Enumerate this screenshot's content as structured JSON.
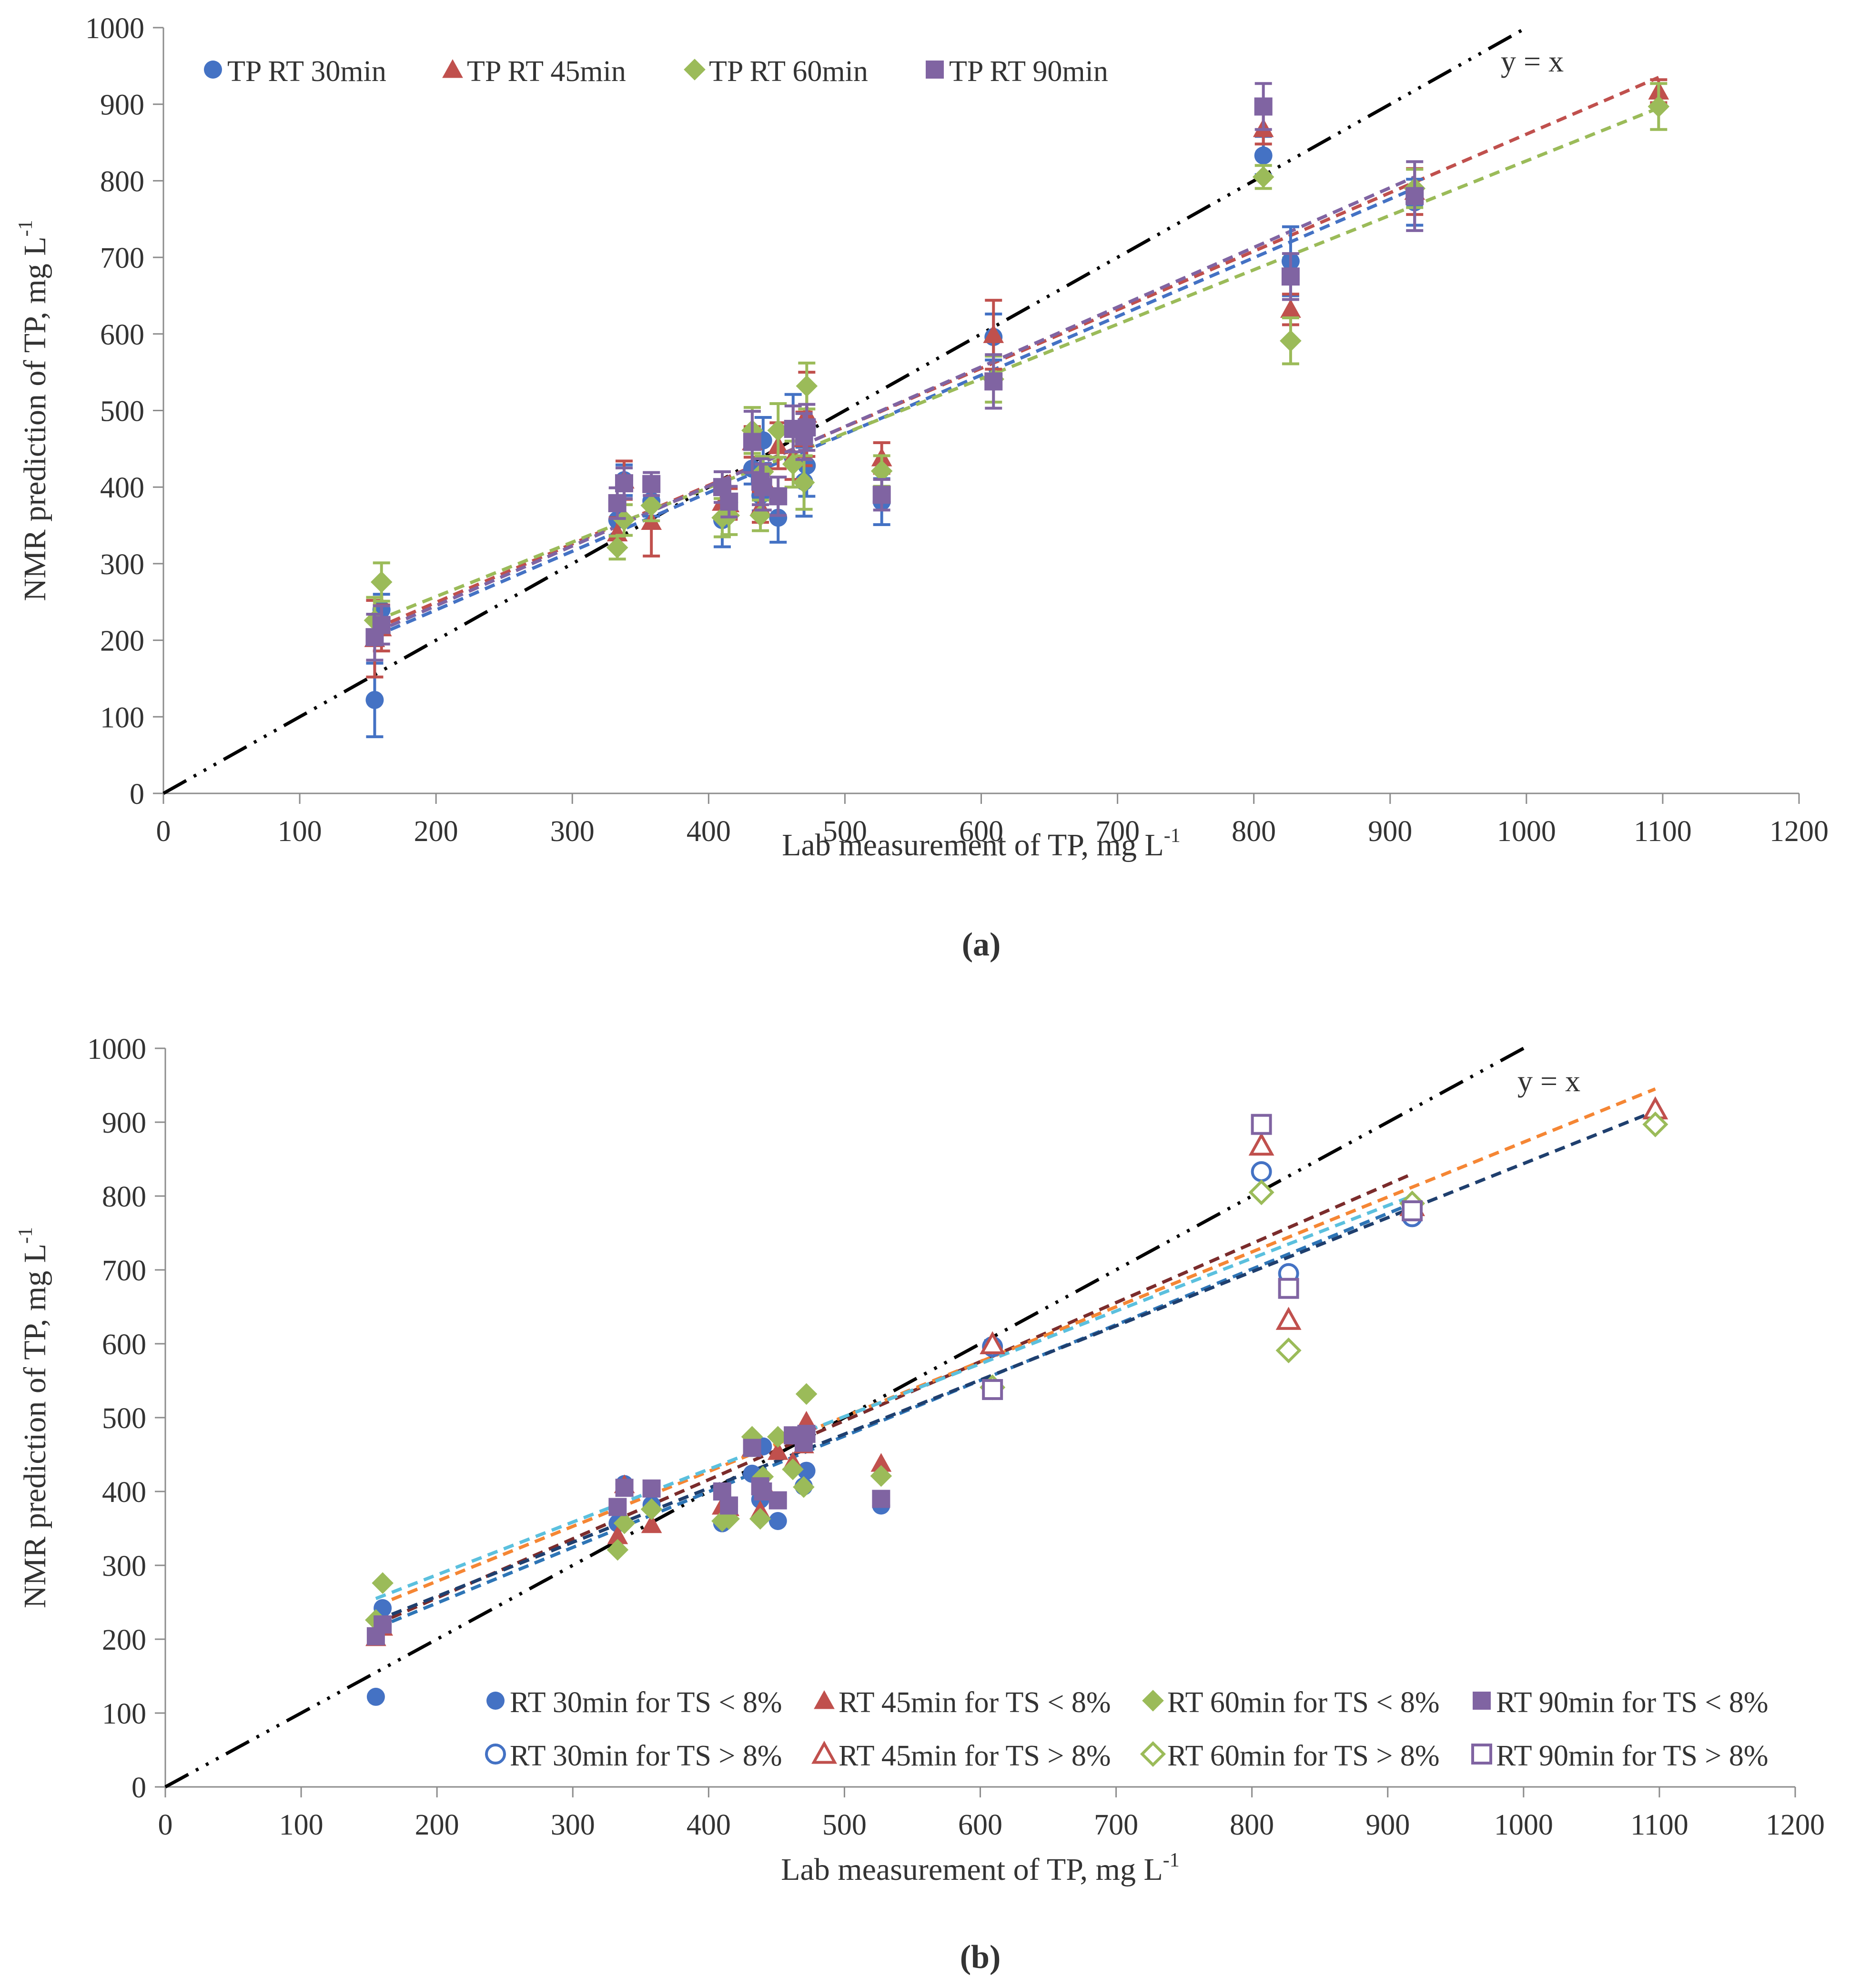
{
  "colors": {
    "rt30": "#4472c4",
    "rt45": "#c0504d",
    "rt60": "#9bbb59",
    "rt90": "#8064a2",
    "identity": "#000000",
    "fitB_lt8_30": "#2e75b6",
    "fitB_gt8_30": "#1f3f6e",
    "fitB_45": "#7b2c2c",
    "fitB_60": "#5bc0de",
    "fitB_90": "#f58634"
  },
  "chart_data": [
    {
      "type": "scatter",
      "caption": "(a)",
      "xlabel": "Lab measurement of TP, mg L",
      "ylabel": "NMR prediction of TP, mg L",
      "unit_superscript": "-1",
      "xlim": [
        0,
        1200
      ],
      "ylim": [
        0,
        1000
      ],
      "xticks": [
        "0",
        "100",
        "200",
        "300",
        "400",
        "500",
        "600",
        "700",
        "800",
        "900",
        "1000",
        "1100",
        "1200"
      ],
      "yticks": [
        "0",
        "100",
        "200",
        "300",
        "400",
        "500",
        "600",
        "700",
        "800",
        "900",
        "1000"
      ],
      "identity_label": "y = x",
      "series": [
        {
          "name": "TP RT 30min",
          "marker": "circle",
          "color_key": "rt30",
          "x": [
            155,
            160,
            333,
            338,
            358,
            410,
            415,
            432,
            438,
            440,
            451,
            462,
            470,
            472,
            527,
            609,
            807,
            827,
            918
          ],
          "y": [
            122,
            240,
            357,
            409,
            382,
            357,
            380,
            424,
            389,
            461,
            360,
            476,
            407,
            428,
            381,
            596,
            833,
            695,
            772
          ],
          "err": [
            48,
            20,
            20,
            20,
            20,
            35,
            20,
            20,
            20,
            30,
            32,
            45,
            45,
            40,
            30,
            30,
            25,
            45,
            30
          ],
          "fit": [
            [
              155,
              205
            ],
            [
              918,
              790
            ]
          ]
        },
        {
          "name": "TP RT 45min",
          "marker": "triangle",
          "color_key": "rt45",
          "x": [
            155,
            160,
            333,
            338,
            358,
            410,
            415,
            432,
            438,
            440,
            451,
            462,
            470,
            472,
            527,
            609,
            807,
            827,
            918,
            1097
          ],
          "y": [
            202,
            216,
            340,
            409,
            355,
            380,
            378,
            459,
            374,
            410,
            454,
            440,
            463,
            495,
            438,
            599,
            868,
            632,
            786,
            917
          ],
          "err": [
            50,
            30,
            20,
            25,
            45,
            20,
            20,
            20,
            20,
            20,
            30,
            30,
            35,
            55,
            20,
            45,
            20,
            20,
            30,
            15
          ],
          "fit": [
            [
              155,
              215
            ],
            [
              1097,
              935
            ]
          ]
        },
        {
          "name": "TP RT 60min",
          "marker": "diamond",
          "color_key": "rt60",
          "x": [
            155,
            160,
            333,
            338,
            358,
            410,
            415,
            432,
            438,
            440,
            451,
            462,
            470,
            472,
            527,
            609,
            807,
            827,
            918,
            1097
          ],
          "y": [
            226,
            276,
            321,
            357,
            376,
            360,
            363,
            474,
            363,
            420,
            474,
            430,
            406,
            532,
            421,
            541,
            805,
            591,
            790,
            897
          ],
          "err": [
            30,
            25,
            15,
            20,
            20,
            25,
            25,
            30,
            20,
            20,
            35,
            30,
            35,
            30,
            20,
            30,
            15,
            30,
            25,
            30
          ],
          "fit": [
            [
              155,
              225
            ],
            [
              1097,
              895
            ]
          ]
        },
        {
          "name": "TP RT 90min",
          "marker": "square",
          "color_key": "rt90",
          "x": [
            155,
            160,
            333,
            338,
            358,
            410,
            415,
            432,
            438,
            440,
            451,
            462,
            470,
            472,
            527,
            609,
            807,
            827,
            918
          ],
          "y": [
            204,
            220,
            379,
            405,
            404,
            400,
            381,
            459,
            407,
            400,
            388,
            476,
            466,
            478,
            390,
            538,
            897,
            675,
            780
          ],
          "err": [
            30,
            25,
            20,
            20,
            15,
            20,
            20,
            40,
            30,
            30,
            25,
            30,
            30,
            30,
            20,
            35,
            30,
            30,
            45
          ],
          "fit": [
            [
              155,
              210
            ],
            [
              918,
              805
            ]
          ]
        }
      ]
    },
    {
      "type": "scatter",
      "caption": "(b)",
      "xlabel": "Lab measurement of TP, mg L",
      "ylabel": "NMR prediction of TP, mg L",
      "unit_superscript": "-1",
      "xlim": [
        0,
        1200
      ],
      "ylim": [
        0,
        1000
      ],
      "xticks": [
        "0",
        "100",
        "200",
        "300",
        "400",
        "500",
        "600",
        "700",
        "800",
        "900",
        "1000",
        "1100",
        "1200"
      ],
      "yticks": [
        "0",
        "100",
        "200",
        "300",
        "400",
        "500",
        "600",
        "700",
        "800",
        "900",
        "1000"
      ],
      "identity_label": "y = x",
      "series": [
        {
          "name": "RT 30min for TS < 8%",
          "marker": "circle",
          "filled": true,
          "color_key": "rt30",
          "x": [
            155,
            160,
            333,
            338,
            358,
            410,
            415,
            432,
            438,
            440,
            451,
            462,
            470,
            472,
            527
          ],
          "y": [
            122,
            242,
            357,
            410,
            382,
            357,
            380,
            424,
            389,
            461,
            360,
            476,
            407,
            428,
            381
          ]
        },
        {
          "name": "RT 45min for TS < 8%",
          "marker": "triangle",
          "filled": true,
          "color_key": "rt45",
          "x": [
            155,
            160,
            333,
            338,
            358,
            410,
            415,
            432,
            438,
            440,
            451,
            462,
            470,
            472,
            527
          ],
          "y": [
            202,
            216,
            340,
            409,
            355,
            380,
            378,
            459,
            374,
            410,
            454,
            440,
            463,
            495,
            438
          ]
        },
        {
          "name": "RT 60min for TS < 8%",
          "marker": "diamond",
          "filled": true,
          "color_key": "rt60",
          "x": [
            155,
            160,
            333,
            338,
            358,
            410,
            415,
            432,
            438,
            440,
            451,
            462,
            470,
            472,
            527
          ],
          "y": [
            226,
            276,
            321,
            357,
            376,
            360,
            363,
            474,
            363,
            420,
            474,
            430,
            406,
            532,
            421
          ]
        },
        {
          "name": "RT 90min for TS < 8%",
          "marker": "square",
          "filled": true,
          "color_key": "rt90",
          "x": [
            155,
            160,
            333,
            338,
            358,
            410,
            415,
            432,
            438,
            440,
            451,
            462,
            470,
            472,
            527
          ],
          "y": [
            204,
            220,
            379,
            405,
            404,
            400,
            381,
            459,
            407,
            400,
            388,
            476,
            466,
            478,
            390
          ]
        },
        {
          "name": "RT 30min for TS > 8%",
          "marker": "circle",
          "filled": false,
          "color_key": "rt30",
          "x": [
            609,
            807,
            827,
            918
          ],
          "y": [
            596,
            833,
            695,
            772
          ]
        },
        {
          "name": "RT 45min for TS > 8%",
          "marker": "triangle",
          "filled": false,
          "color_key": "rt45",
          "x": [
            609,
            807,
            827,
            918,
            1097
          ],
          "y": [
            599,
            868,
            632,
            786,
            917
          ]
        },
        {
          "name": "RT 60min for TS > 8%",
          "marker": "diamond",
          "filled": false,
          "color_key": "rt60",
          "x": [
            609,
            807,
            827,
            918,
            1097
          ],
          "y": [
            541,
            805,
            591,
            790,
            897
          ]
        },
        {
          "name": "RT 90min for TS > 8%",
          "marker": "square",
          "filled": false,
          "color_key": "rt90",
          "x": [
            609,
            807,
            827,
            918
          ],
          "y": [
            538,
            897,
            675,
            780
          ]
        }
      ],
      "fits": [
        {
          "color_key": "fitB_lt8_30",
          "from": [
            155,
            215
          ],
          "to": [
            918,
            790
          ]
        },
        {
          "color_key": "fitB_45",
          "from": [
            155,
            220
          ],
          "to": [
            918,
            830
          ]
        },
        {
          "color_key": "fitB_90",
          "from": [
            155,
            245
          ],
          "to": [
            1097,
            945
          ]
        },
        {
          "color_key": "fitB_60",
          "from": [
            155,
            255
          ],
          "to": [
            918,
            800
          ]
        },
        {
          "color_key": "fitB_gt8_30",
          "from": [
            155,
            225
          ],
          "to": [
            1097,
            915
          ]
        }
      ]
    }
  ]
}
